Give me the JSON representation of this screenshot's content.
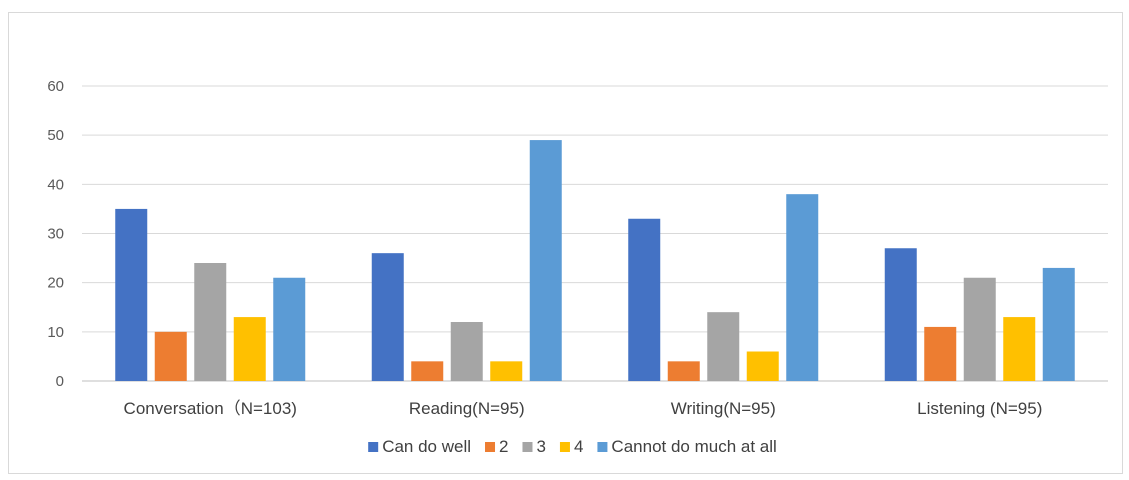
{
  "chart_data": {
    "type": "bar",
    "title": "",
    "xlabel": "",
    "ylabel": "",
    "ylim": [
      0,
      60
    ],
    "yticks": [
      0,
      10,
      20,
      30,
      40,
      50,
      60
    ],
    "grid": true,
    "legend_position": "bottom",
    "categories": [
      "Conversation（N=103)",
      "Reading(N=95)",
      "Writing(N=95)",
      "Listening (N=95)"
    ],
    "series": [
      {
        "name": "Can do well",
        "color": "#4472C4",
        "values": [
          35,
          26,
          33,
          27
        ]
      },
      {
        "name": "2",
        "color": "#ED7D31",
        "values": [
          10,
          4,
          4,
          11
        ]
      },
      {
        "name": "3",
        "color": "#A5A5A5",
        "values": [
          24,
          12,
          14,
          21
        ]
      },
      {
        "name": "4",
        "color": "#FFC000",
        "values": [
          13,
          4,
          6,
          13
        ]
      },
      {
        "name": "Cannot do much at all",
        "color": "#5B9BD5",
        "values": [
          21,
          49,
          38,
          23
        ]
      }
    ]
  }
}
